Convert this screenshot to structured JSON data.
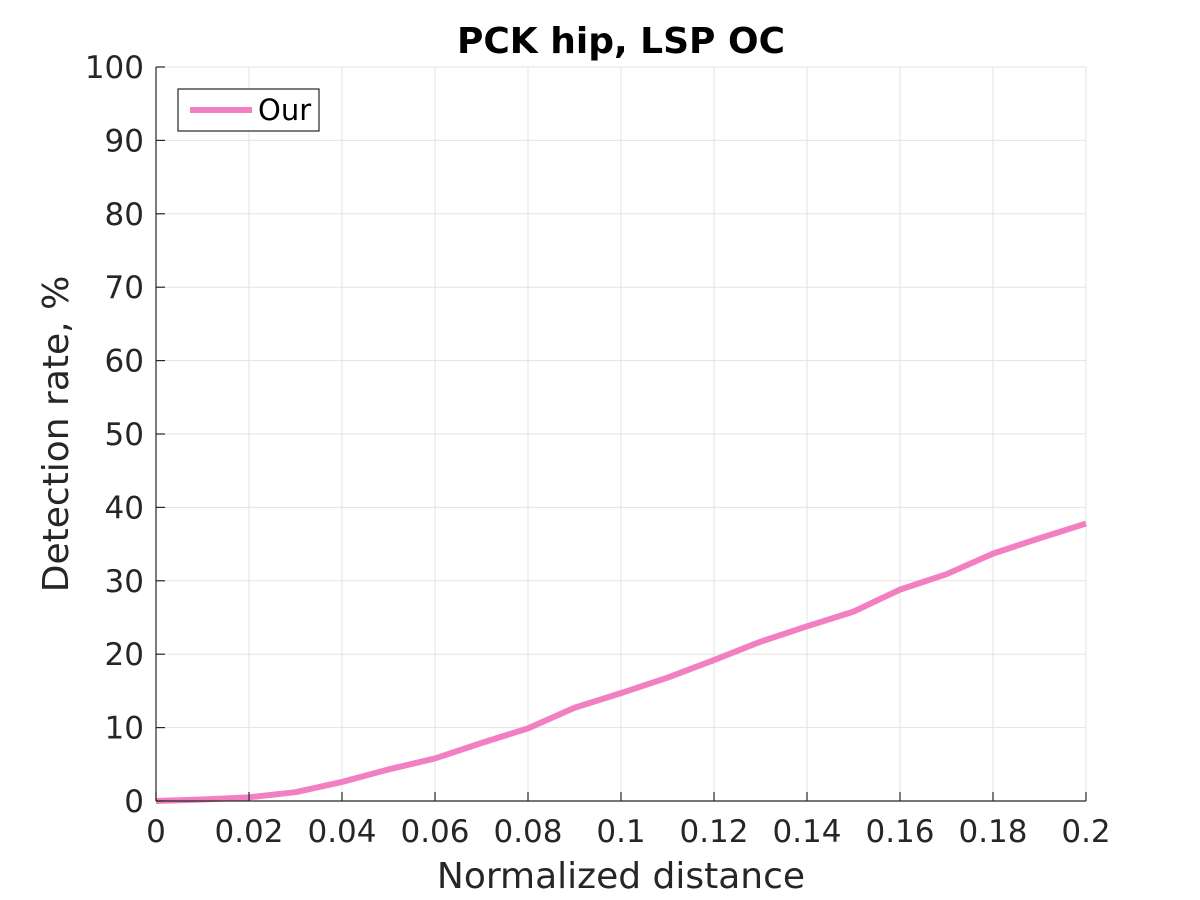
{
  "chart_data": {
    "type": "line",
    "title": "PCK hip, LSP OC",
    "xlabel": "Normalized distance",
    "ylabel": "Detection rate, %",
    "xlim": [
      0,
      0.2
    ],
    "ylim": [
      0,
      100
    ],
    "xticks": [
      0,
      0.02,
      0.04,
      0.06,
      0.08,
      0.1,
      0.12,
      0.14,
      0.16,
      0.18,
      0.2
    ],
    "xtick_labels": [
      "0",
      "0.02",
      "0.04",
      "0.06",
      "0.08",
      "0.1",
      "0.12",
      "0.14",
      "0.16",
      "0.18",
      "0.2"
    ],
    "yticks": [
      0,
      10,
      20,
      30,
      40,
      50,
      60,
      70,
      80,
      90,
      100
    ],
    "ytick_labels": [
      "0",
      "10",
      "20",
      "30",
      "40",
      "50",
      "60",
      "70",
      "80",
      "90",
      "100"
    ],
    "grid": true,
    "legend_position": "top-left",
    "series": [
      {
        "name": "Our",
        "color": "#f27fc1",
        "x": [
          0,
          0.01,
          0.02,
          0.03,
          0.04,
          0.05,
          0.06,
          0.07,
          0.08,
          0.09,
          0.1,
          0.11,
          0.12,
          0.13,
          0.14,
          0.15,
          0.16,
          0.17,
          0.18,
          0.19,
          0.2
        ],
        "y": [
          0,
          0.2,
          0.5,
          1.2,
          2.6,
          4.3,
          5.8,
          7.9,
          9.9,
          12.7,
          14.7,
          16.8,
          19.2,
          21.7,
          23.8,
          25.8,
          28.8,
          30.9,
          33.7,
          35.8,
          37.8
        ]
      }
    ]
  }
}
